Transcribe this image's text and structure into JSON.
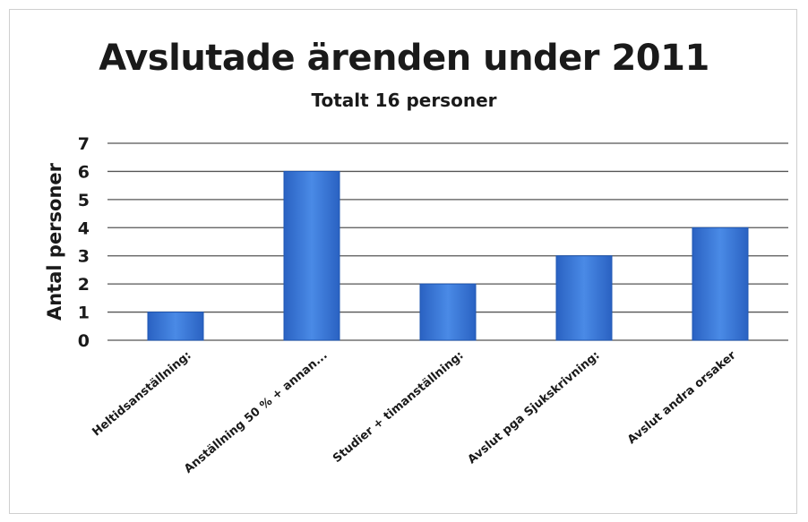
{
  "chart_data": {
    "type": "bar",
    "title": "Avslutade ärenden under 2011",
    "subtitle": "Totalt 16 personer",
    "xlabel": "",
    "ylabel": "Antal personer",
    "ylim": [
      0,
      7
    ],
    "yticks": [
      "0",
      "1",
      "2",
      "3",
      "4",
      "5",
      "6",
      "7"
    ],
    "grid": true,
    "categories": [
      "Heltidsanställning:",
      "Anställning 50 % + annan...",
      "Studier + timanställning:",
      "Avslut pga Sjukskrivning:",
      "Avslut andra orsaker"
    ],
    "values": [
      1,
      6,
      2,
      3,
      4
    ],
    "colors": {
      "bar": "#3a78d8",
      "bar_dark": "#1f57b3",
      "grid": "#555555"
    }
  }
}
